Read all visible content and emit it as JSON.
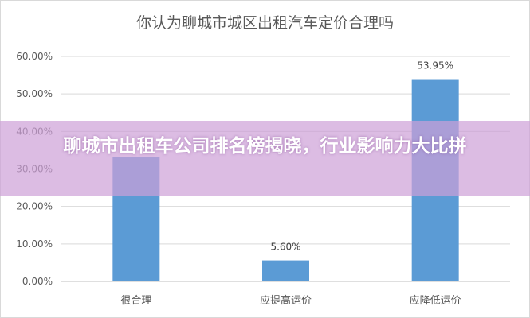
{
  "chart_data": {
    "type": "bar",
    "title": "你认为聊城市城区出租汽车定价合理吗",
    "categories": [
      "很合理",
      "应提高运价",
      "应降低运价"
    ],
    "values": [
      33.1,
      5.6,
      53.95
    ],
    "data_labels": [
      "",
      "5.60%",
      "53.95%"
    ],
    "ylim": [
      0,
      60
    ],
    "yticks": [
      "0.00%",
      "10.00%",
      "20.00%",
      "30.00%",
      "40.00%",
      "50.00%",
      "60.00%"
    ],
    "grid": true,
    "bar_color": "#5b9bd5"
  },
  "overlay": {
    "text": "聊城市出租车公司排名榜揭晓，行业影响力大比拼",
    "color": "#cda0d7"
  }
}
